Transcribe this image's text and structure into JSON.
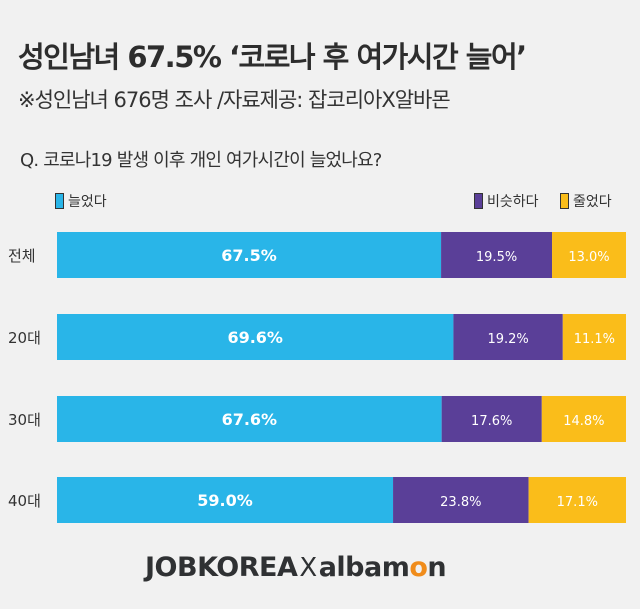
{
  "header": {
    "title": "성인남녀 67.5% ‘코로나 후 여가시간 늘어’",
    "subtitle": "※성인남녀 676명 조사 /자료제공: 잡코리아X알바몬",
    "question": "Q. 코로나19 발생 이후 개인 여가시간이 늘었나요?"
  },
  "chart_data": {
    "type": "bar",
    "orientation": "horizontal",
    "stacked": true,
    "categories": [
      "전체",
      "20대",
      "30대",
      "40대"
    ],
    "series": [
      {
        "name": "늘었다",
        "color": "#29b5e8",
        "values": [
          67.5,
          69.6,
          67.6,
          59.0
        ]
      },
      {
        "name": "비슷하다",
        "color": "#5a3f98",
        "values": [
          19.5,
          19.2,
          17.6,
          23.8
        ]
      },
      {
        "name": "줄었다",
        "color": "#fabd1a",
        "values": [
          13.0,
          11.1,
          14.8,
          17.1
        ]
      }
    ],
    "xlim": [
      0,
      100
    ],
    "legend": "top",
    "grid": false
  },
  "footer": {
    "logo_left": "JOBKOREA",
    "logo_x": "X",
    "logo_right_a": "albam",
    "logo_right_o": "o",
    "logo_right_n": "n"
  }
}
